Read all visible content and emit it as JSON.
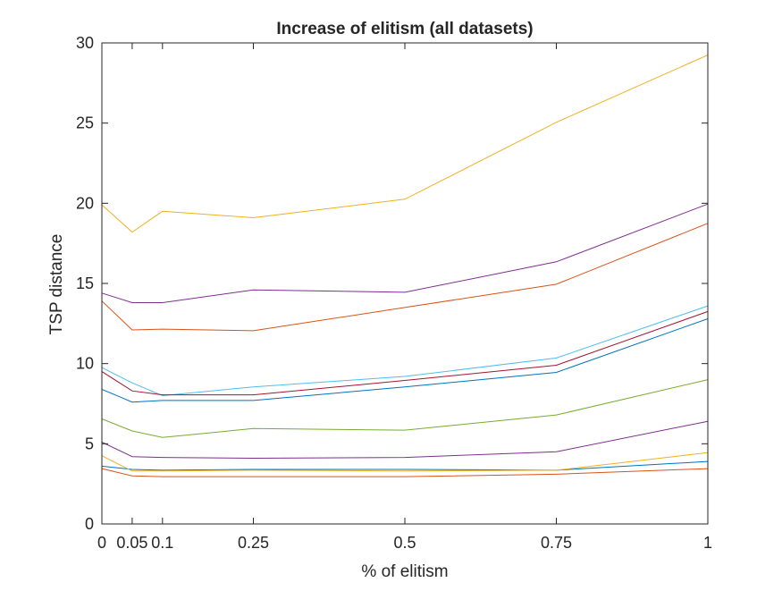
{
  "chart_data": {
    "type": "line",
    "title": "Increase of elitism (all datasets)",
    "xlabel": "% of elitism",
    "ylabel": "TSP distance",
    "xlim": [
      0,
      1
    ],
    "ylim": [
      0,
      30
    ],
    "x": [
      0,
      0.05,
      0.1,
      0.25,
      0.5,
      0.75,
      1
    ],
    "xticks": [
      0,
      0.05,
      0.1,
      0.25,
      0.5,
      0.75,
      1
    ],
    "xtick_labels": [
      "0",
      "0.05",
      "0.1",
      "0.25",
      "0.5",
      "0.75",
      "1"
    ],
    "yticks": [
      0,
      5,
      10,
      15,
      20,
      25,
      30
    ],
    "ytick_labels": [
      "0",
      "5",
      "10",
      "15",
      "20",
      "25",
      "30"
    ],
    "grid": false,
    "legend": "none",
    "series": [
      {
        "color": "#0072BD",
        "values": [
          8.4,
          7.6,
          7.7,
          7.7,
          8.55,
          9.45,
          12.8
        ]
      },
      {
        "color": "#D95319",
        "values": [
          13.9,
          12.1,
          12.15,
          12.05,
          13.5,
          14.95,
          18.75
        ]
      },
      {
        "color": "#EDB120",
        "values": [
          19.9,
          18.2,
          19.5,
          19.1,
          20.25,
          25.05,
          29.25
        ]
      },
      {
        "color": "#7E2F8E",
        "values": [
          14.4,
          13.8,
          13.8,
          14.6,
          14.45,
          16.35,
          19.95
        ]
      },
      {
        "color": "#77AC30",
        "values": [
          6.55,
          5.8,
          5.4,
          5.95,
          5.85,
          6.8,
          9.0
        ]
      },
      {
        "color": "#4DBEEE",
        "values": [
          9.75,
          8.8,
          8.0,
          8.55,
          9.2,
          10.35,
          13.6
        ]
      },
      {
        "color": "#A2142F",
        "values": [
          9.5,
          8.3,
          8.05,
          8.05,
          8.95,
          9.9,
          13.25
        ]
      },
      {
        "color": "#0072BD",
        "values": [
          3.6,
          3.4,
          3.35,
          3.4,
          3.4,
          3.35,
          3.9
        ]
      },
      {
        "color": "#D95319",
        "values": [
          3.45,
          3.0,
          2.95,
          2.95,
          2.95,
          3.1,
          3.45
        ]
      },
      {
        "color": "#EDB120",
        "values": [
          4.25,
          3.3,
          3.3,
          3.35,
          3.3,
          3.35,
          4.45
        ]
      },
      {
        "color": "#7E2F8E",
        "values": [
          5.1,
          4.2,
          4.15,
          4.1,
          4.15,
          4.5,
          6.4
        ]
      }
    ]
  }
}
